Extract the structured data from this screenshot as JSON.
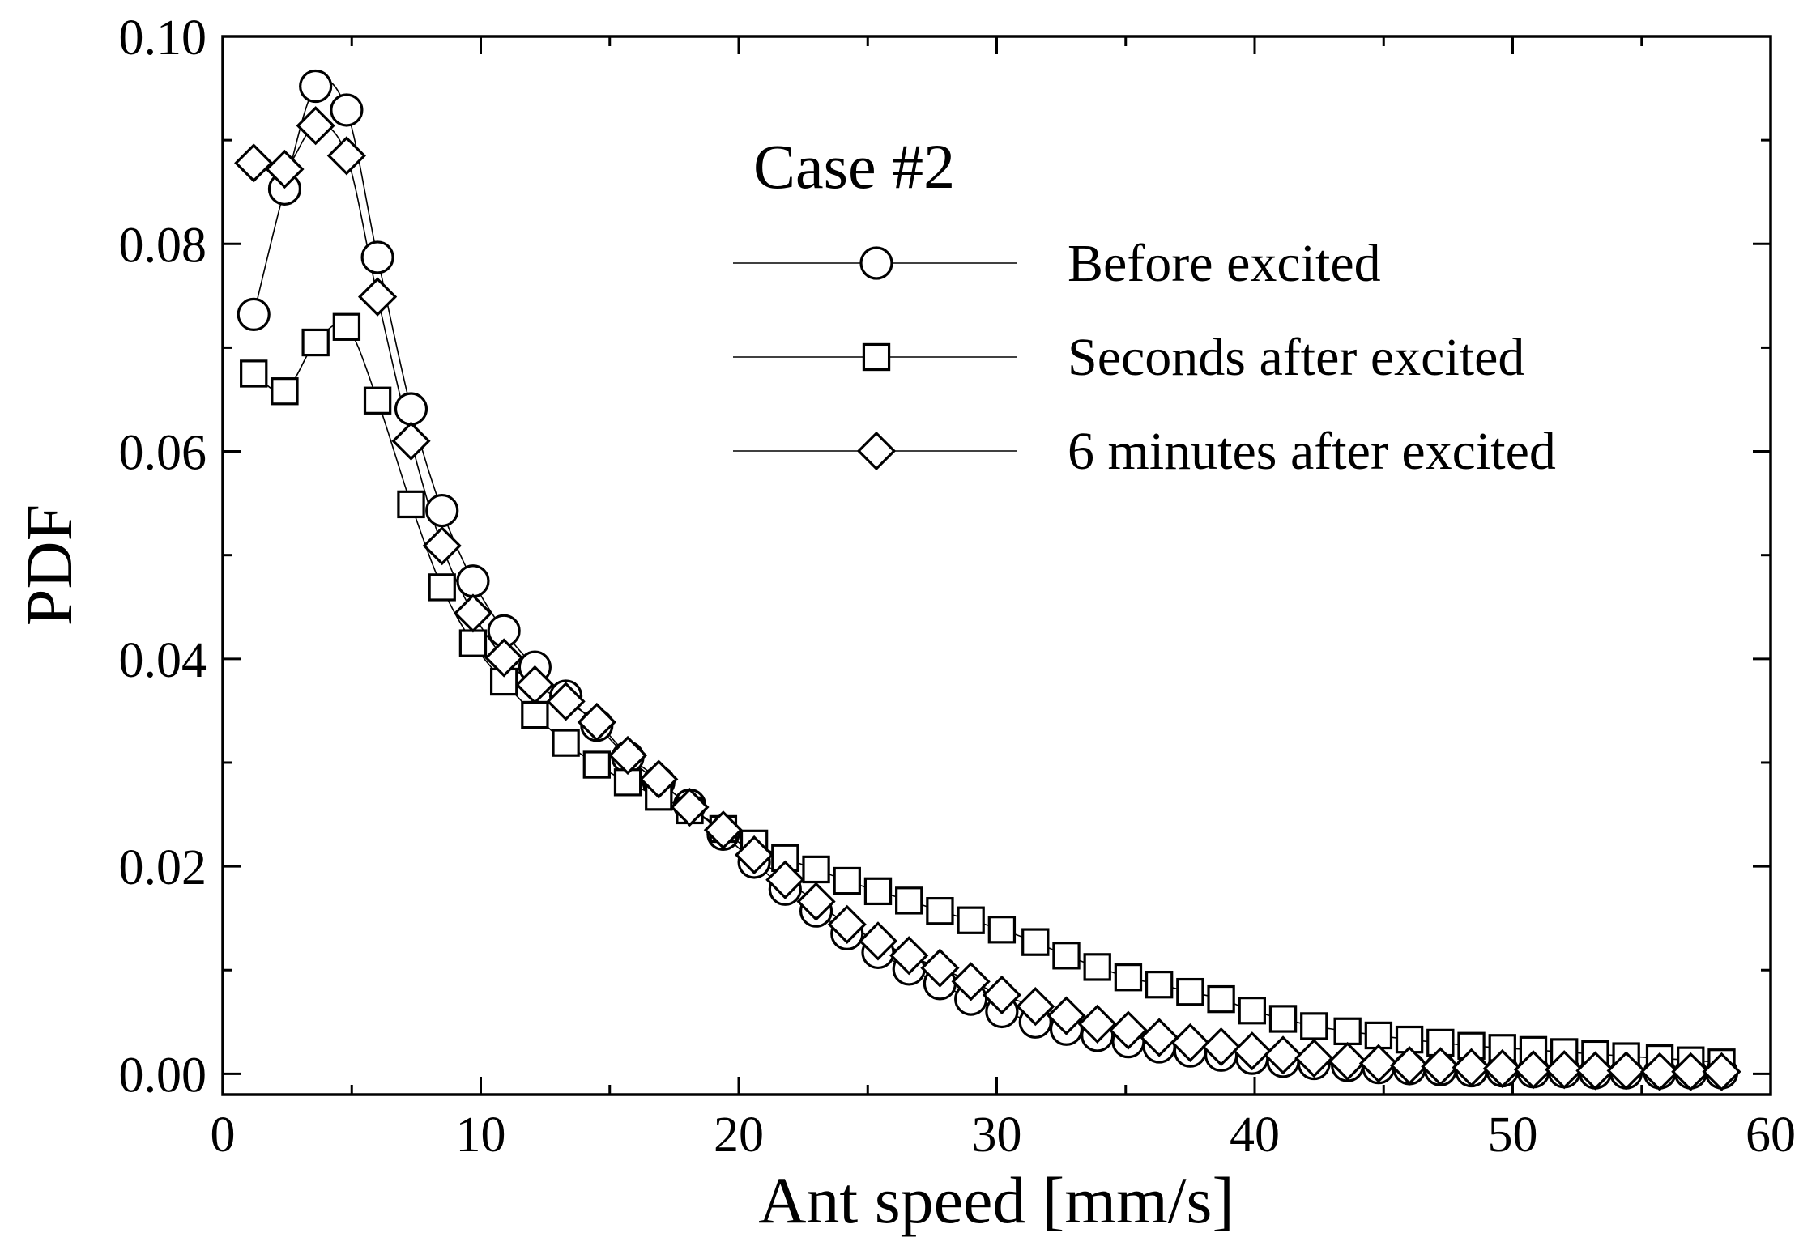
{
  "chart_data": {
    "type": "line",
    "xlabel": "Ant speed [mm/s]",
    "ylabel": "PDF",
    "xlim": [
      0,
      60
    ],
    "ylim": [
      -0.002,
      0.1
    ],
    "xticks": [
      "0",
      "10",
      "20",
      "30",
      "40",
      "50",
      "60"
    ],
    "yticks": [
      "0.00",
      "0.02",
      "0.04",
      "0.06",
      "0.08",
      "0.10"
    ],
    "grid": false,
    "legend": {
      "title": "Case #2",
      "position": "top-right"
    },
    "series": [
      {
        "name": "Before excited",
        "marker": "circle",
        "x": [
          1.2,
          2.4,
          3.6,
          4.8,
          6.0,
          7.3,
          8.5,
          9.7,
          10.9,
          12.1,
          13.3,
          14.5,
          15.7,
          16.9,
          18.1,
          19.4,
          20.6,
          21.8,
          23.0,
          24.2,
          25.4,
          26.6,
          27.8,
          29.0,
          30.2,
          31.5,
          32.7,
          33.9,
          35.1,
          36.3,
          37.5,
          38.7,
          39.9,
          41.1,
          42.3,
          43.6,
          44.8,
          46.0,
          47.2,
          48.4,
          49.6,
          50.8,
          52.0,
          53.2,
          54.4,
          55.7,
          56.9,
          58.1
        ],
        "values": [
          0.0732,
          0.0853,
          0.0952,
          0.0929,
          0.0787,
          0.0641,
          0.0543,
          0.0475,
          0.0427,
          0.0392,
          0.0364,
          0.0336,
          0.0305,
          0.0281,
          0.0259,
          0.0231,
          0.0204,
          0.0178,
          0.0157,
          0.0135,
          0.0117,
          0.0101,
          0.0087,
          0.0072,
          0.006,
          0.005,
          0.0043,
          0.0037,
          0.0031,
          0.0026,
          0.0022,
          0.0018,
          0.0015,
          0.0012,
          0.001,
          0.0008,
          0.0006,
          0.0005,
          0.0004,
          0.0003,
          0.0003,
          0.0002,
          0.0002,
          0.0001,
          0.0001,
          0.0001,
          0.0001,
          0.0001
        ]
      },
      {
        "name": "Seconds after excited",
        "marker": "square",
        "x": [
          1.2,
          2.4,
          3.6,
          4.8,
          6.0,
          7.3,
          8.5,
          9.7,
          10.9,
          12.1,
          13.3,
          14.5,
          15.7,
          16.9,
          18.1,
          19.4,
          20.6,
          21.8,
          23.0,
          24.2,
          25.4,
          26.6,
          27.8,
          29.0,
          30.2,
          31.5,
          32.7,
          33.9,
          35.1,
          36.3,
          37.5,
          38.7,
          39.9,
          41.1,
          42.3,
          43.6,
          44.8,
          46.0,
          47.2,
          48.4,
          49.6,
          50.8,
          52.0,
          53.2,
          54.4,
          55.7,
          56.9,
          58.1
        ],
        "values": [
          0.0675,
          0.0658,
          0.0705,
          0.072,
          0.0649,
          0.0549,
          0.0469,
          0.0415,
          0.0378,
          0.0346,
          0.0319,
          0.0298,
          0.0281,
          0.0267,
          0.0254,
          0.0236,
          0.0222,
          0.0208,
          0.0197,
          0.0186,
          0.0176,
          0.0167,
          0.0157,
          0.0148,
          0.0139,
          0.0127,
          0.0114,
          0.0103,
          0.0093,
          0.0086,
          0.0079,
          0.0072,
          0.0061,
          0.0053,
          0.0046,
          0.0041,
          0.0037,
          0.0033,
          0.003,
          0.0027,
          0.0025,
          0.0023,
          0.0021,
          0.0019,
          0.0017,
          0.0015,
          0.0013,
          0.0011
        ]
      },
      {
        "name": "6 minutes after excited",
        "marker": "diamond",
        "x": [
          1.2,
          2.4,
          3.6,
          4.8,
          6.0,
          7.3,
          8.5,
          9.7,
          10.9,
          12.1,
          13.3,
          14.5,
          15.7,
          16.9,
          18.1,
          19.4,
          20.6,
          21.8,
          23.0,
          24.2,
          25.4,
          26.6,
          27.8,
          29.0,
          30.2,
          31.5,
          32.7,
          33.9,
          35.1,
          36.3,
          37.5,
          38.7,
          39.9,
          41.1,
          42.3,
          43.6,
          44.8,
          46.0,
          47.2,
          48.4,
          49.6,
          50.8,
          52.0,
          53.2,
          54.4,
          55.7,
          56.9,
          58.1
        ],
        "values": [
          0.0878,
          0.0872,
          0.0914,
          0.0885,
          0.0749,
          0.061,
          0.0509,
          0.0444,
          0.0401,
          0.0375,
          0.0359,
          0.0339,
          0.0307,
          0.0284,
          0.0257,
          0.0235,
          0.0211,
          0.0187,
          0.0166,
          0.0144,
          0.0128,
          0.0114,
          0.0102,
          0.0089,
          0.0076,
          0.0065,
          0.0056,
          0.0048,
          0.0042,
          0.0035,
          0.003,
          0.0026,
          0.0022,
          0.0018,
          0.0015,
          0.0012,
          0.001,
          0.0008,
          0.0007,
          0.0006,
          0.0005,
          0.0004,
          0.0004,
          0.0003,
          0.0003,
          0.0002,
          0.0002,
          0.0002
        ]
      }
    ]
  }
}
